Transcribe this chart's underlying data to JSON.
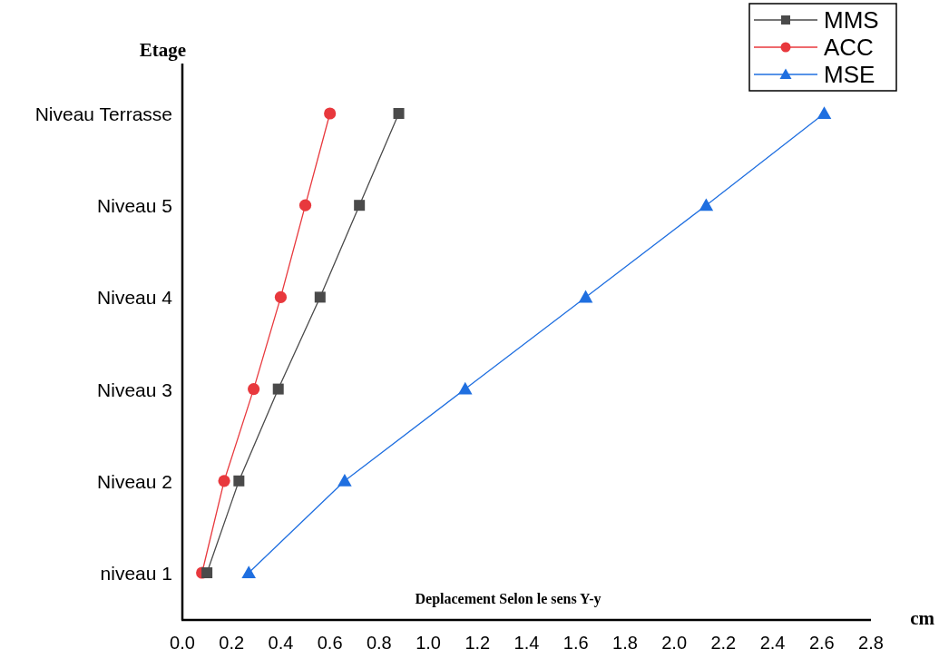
{
  "chart_data": {
    "type": "line",
    "orientation": "horizontal",
    "ylabel": "Etage",
    "xlabel": "cm",
    "annotations": [
      "Deplacement Selon le sens Y-y"
    ],
    "categories": [
      "Niveau Terrasse",
      "Niveau 5",
      "Niveau 4",
      "Niveau 3",
      "Niveau 2",
      "niveau 1"
    ],
    "series": [
      {
        "name": "MMS",
        "color": "#4a4a4a",
        "marker": "square",
        "values": [
          0.88,
          0.72,
          0.56,
          0.39,
          0.23,
          0.1
        ]
      },
      {
        "name": "ACC",
        "color": "#e8383d",
        "marker": "circle",
        "values": [
          0.6,
          0.5,
          0.4,
          0.29,
          0.17,
          0.08
        ]
      },
      {
        "name": "MSE",
        "color": "#1f6fe0",
        "marker": "triangle",
        "values": [
          2.61,
          2.13,
          1.64,
          1.15,
          0.66,
          0.27
        ]
      }
    ],
    "xlim": [
      0,
      2.8
    ],
    "xticks": [
      {
        "value": 0,
        "label": "0.0"
      },
      {
        "value": 0.2,
        "label": "0.2"
      },
      {
        "value": 0.4,
        "label": "0.4"
      },
      {
        "value": 0.6,
        "label": "0.6"
      },
      {
        "value": 0.8,
        "label": "0.8"
      },
      {
        "value": 1,
        "label": "1.0"
      },
      {
        "value": 1.2,
        "label": "1.2"
      },
      {
        "value": 1.4,
        "label": "1.4"
      },
      {
        "value": 1.6,
        "label": "1.6"
      },
      {
        "value": 1.8,
        "label": "1.8"
      },
      {
        "value": 2,
        "label": "2.0"
      },
      {
        "value": 2.2,
        "label": "2.2"
      },
      {
        "value": 2.4,
        "label": "2.4"
      },
      {
        "value": 2.6,
        "label": "2.6"
      },
      {
        "value": 2.8,
        "label": "2.8"
      }
    ],
    "grid": false,
    "legend": "top right",
    "line_style": "solid"
  }
}
